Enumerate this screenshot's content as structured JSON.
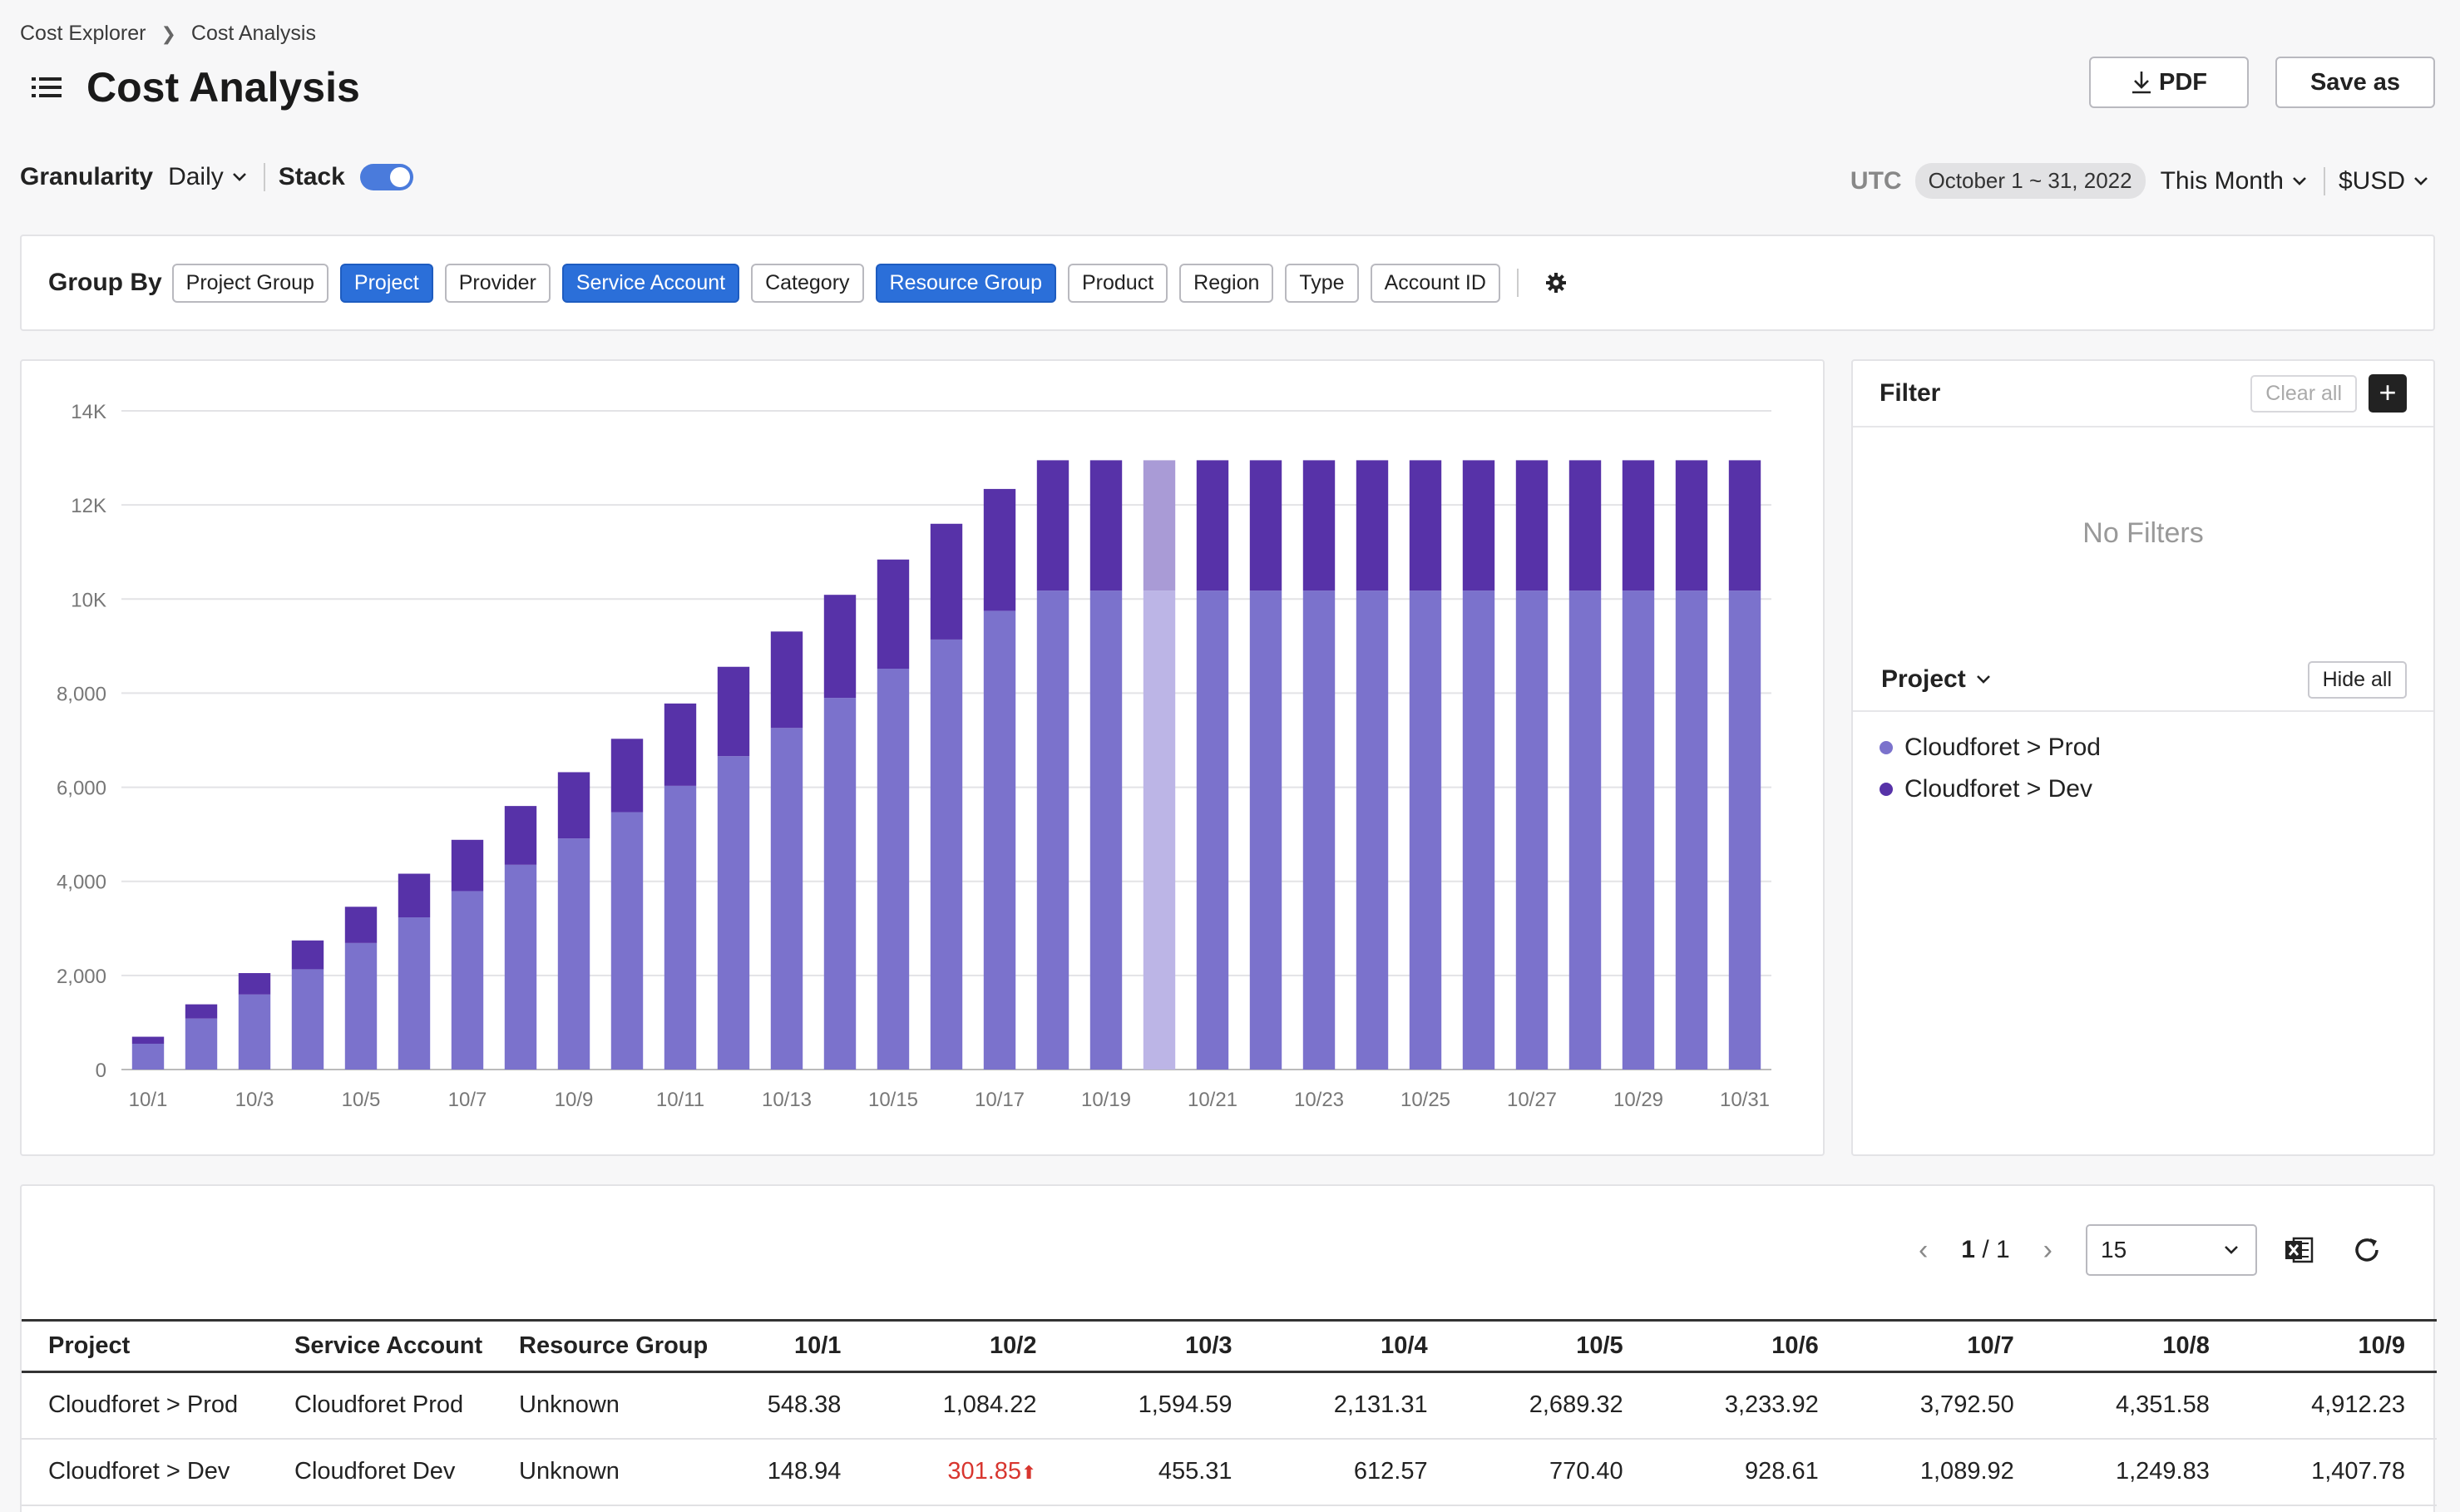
{
  "breadcrumb": {
    "parent": "Cost Explorer",
    "current": "Cost Analysis"
  },
  "page": {
    "title": "Cost Analysis"
  },
  "actions": {
    "pdf_label": "PDF",
    "save_label": "Save as"
  },
  "controls": {
    "granularity_label": "Granularity",
    "granularity_value": "Daily",
    "stack_label": "Stack",
    "stack_on": true,
    "timezone": "UTC",
    "date_range": "October 1 ~ 31, 2022",
    "period": "This Month",
    "currency": "$USD"
  },
  "group_by": {
    "label": "Group By",
    "options": [
      {
        "label": "Project Group",
        "selected": false
      },
      {
        "label": "Project",
        "selected": true
      },
      {
        "label": "Provider",
        "selected": false
      },
      {
        "label": "Service Account",
        "selected": true
      },
      {
        "label": "Category",
        "selected": false
      },
      {
        "label": "Resource Group",
        "selected": true
      },
      {
        "label": "Product",
        "selected": false
      },
      {
        "label": "Region",
        "selected": false
      },
      {
        "label": "Type",
        "selected": false
      },
      {
        "label": "Account ID",
        "selected": false
      }
    ]
  },
  "filter": {
    "title": "Filter",
    "clear_label": "Clear all",
    "add_label": "+",
    "empty_text": "No Filters",
    "project_label": "Project",
    "hide_label": "Hide all",
    "legend": [
      {
        "name": "Cloudforet > Prod",
        "color": "#7b72cc"
      },
      {
        "name": "Cloudforet > Dev",
        "color": "#5732a8"
      }
    ]
  },
  "chart_data": {
    "type": "bar",
    "stacked": true,
    "title": "",
    "xlabel": "",
    "ylabel": "",
    "ylim": [
      0,
      14000
    ],
    "yticks": [
      0,
      2000,
      4000,
      6000,
      8000,
      10000,
      12000,
      14000
    ],
    "ytick_labels": [
      "0",
      "2,000",
      "4,000",
      "6,000",
      "8,000",
      "10K",
      "12K",
      "14K"
    ],
    "highlight_index": 19,
    "categories": [
      "10/1",
      "10/2",
      "10/3",
      "10/4",
      "10/5",
      "10/6",
      "10/7",
      "10/8",
      "10/9",
      "10/10",
      "10/11",
      "10/12",
      "10/13",
      "10/14",
      "10/15",
      "10/16",
      "10/17",
      "10/18",
      "10/19",
      "10/20",
      "10/21",
      "10/22",
      "10/23",
      "10/24",
      "10/25",
      "10/26",
      "10/27",
      "10/28",
      "10/29",
      "10/30",
      "10/31"
    ],
    "xtick_labels": [
      "10/1",
      "",
      "10/3",
      "",
      "10/5",
      "",
      "10/7",
      "",
      "10/9",
      "",
      "10/11",
      "",
      "10/13",
      "",
      "10/15",
      "",
      "10/17",
      "",
      "10/19",
      "",
      "10/21",
      "",
      "10/23",
      "",
      "10/25",
      "",
      "10/27",
      "",
      "10/29",
      "",
      "10/31"
    ],
    "series": [
      {
        "name": "Cloudforet > Prod",
        "color": "#7b72cc",
        "highlight_color": "#bcb5e6",
        "values": [
          548.38,
          1084.22,
          1594.59,
          2131.31,
          2689.32,
          3233.92,
          3792.5,
          4351.58,
          4912.23,
          5470,
          6030,
          6660,
          7260,
          7900,
          8520,
          9140,
          9750,
          10180,
          10180,
          10180,
          10180,
          10180,
          10180,
          10180,
          10180,
          10180,
          10180,
          10180,
          10180,
          10180,
          10180
        ]
      },
      {
        "name": "Cloudforet > Dev",
        "color": "#5732a8",
        "highlight_color": "#a99bd6",
        "values": [
          148.94,
          301.85,
          455.31,
          612.57,
          770.4,
          928.61,
          1089.92,
          1249.83,
          1407.78,
          1560,
          1750,
          1900,
          2050,
          2190,
          2320,
          2460,
          2590,
          2770,
          2770,
          2770,
          2770,
          2770,
          2770,
          2770,
          2770,
          2770,
          2770,
          2770,
          2770,
          2770,
          2770
        ]
      }
    ]
  },
  "table": {
    "page_indicator_current": "1",
    "page_indicator_total": "/ 1",
    "page_size": "15",
    "columns": [
      "Project",
      "Service Account",
      "Resource Group",
      "10/1",
      "10/2",
      "10/3",
      "10/4",
      "10/5",
      "10/6",
      "10/7",
      "10/8",
      "10/9"
    ],
    "rows": [
      [
        "Cloudforet > Prod",
        "Cloudforet Prod",
        "Unknown",
        "548.38",
        "1,084.22",
        "1,594.59",
        "2,131.31",
        "2,689.32",
        "3,233.92",
        "3,792.50",
        "4,351.58",
        "4,912.23"
      ],
      [
        "Cloudforet > Dev",
        "Cloudforet Dev",
        "Unknown",
        "148.94",
        "301.85",
        "455.31",
        "612.57",
        "770.40",
        "928.61",
        "1,089.92",
        "1,249.83",
        "1,407.78"
      ]
    ],
    "up_cells": [
      [
        1,
        4
      ]
    ]
  }
}
